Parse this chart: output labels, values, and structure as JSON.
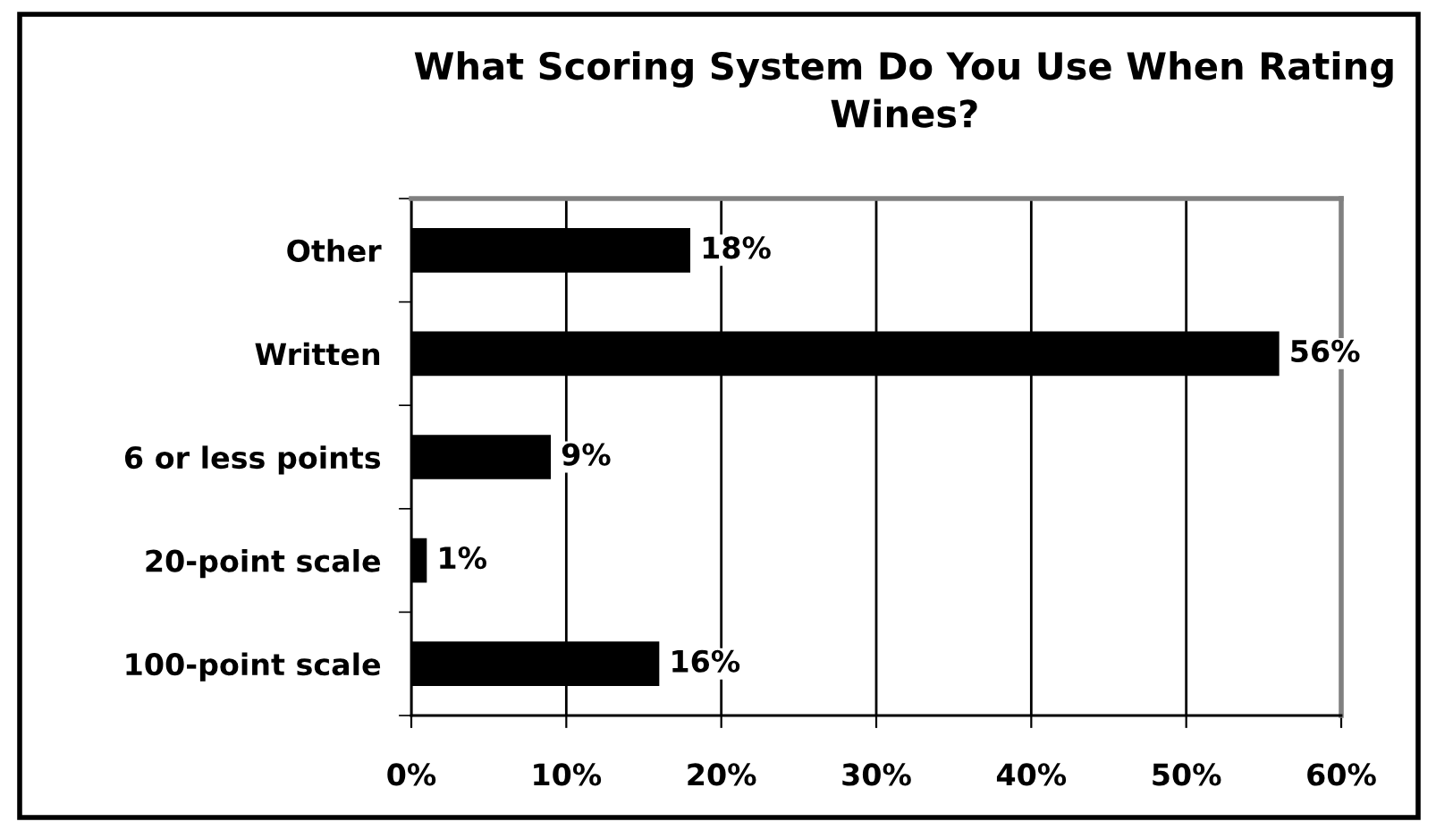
{
  "chart_data": {
    "type": "bar",
    "orientation": "horizontal",
    "title": "What Scoring System Do You Use When Rating Wines?",
    "categories": [
      "Other",
      "Written",
      "6 or less points",
      "20-point scale",
      "100-point scale"
    ],
    "values": [
      18,
      56,
      9,
      1,
      16
    ],
    "color": "#000000",
    "value_labels": [
      "18%",
      "56%",
      "9%",
      "1%",
      "16%"
    ],
    "xlim": [
      0,
      60
    ],
    "xticks": [
      {
        "value": 0,
        "label": "0%"
      },
      {
        "value": 10,
        "label": "10%"
      },
      {
        "value": 20,
        "label": "20%"
      },
      {
        "value": 30,
        "label": "30%"
      },
      {
        "value": 40,
        "label": "40%"
      },
      {
        "value": 50,
        "label": "50%"
      },
      {
        "value": 60,
        "label": "60%"
      }
    ],
    "grid": "x"
  }
}
